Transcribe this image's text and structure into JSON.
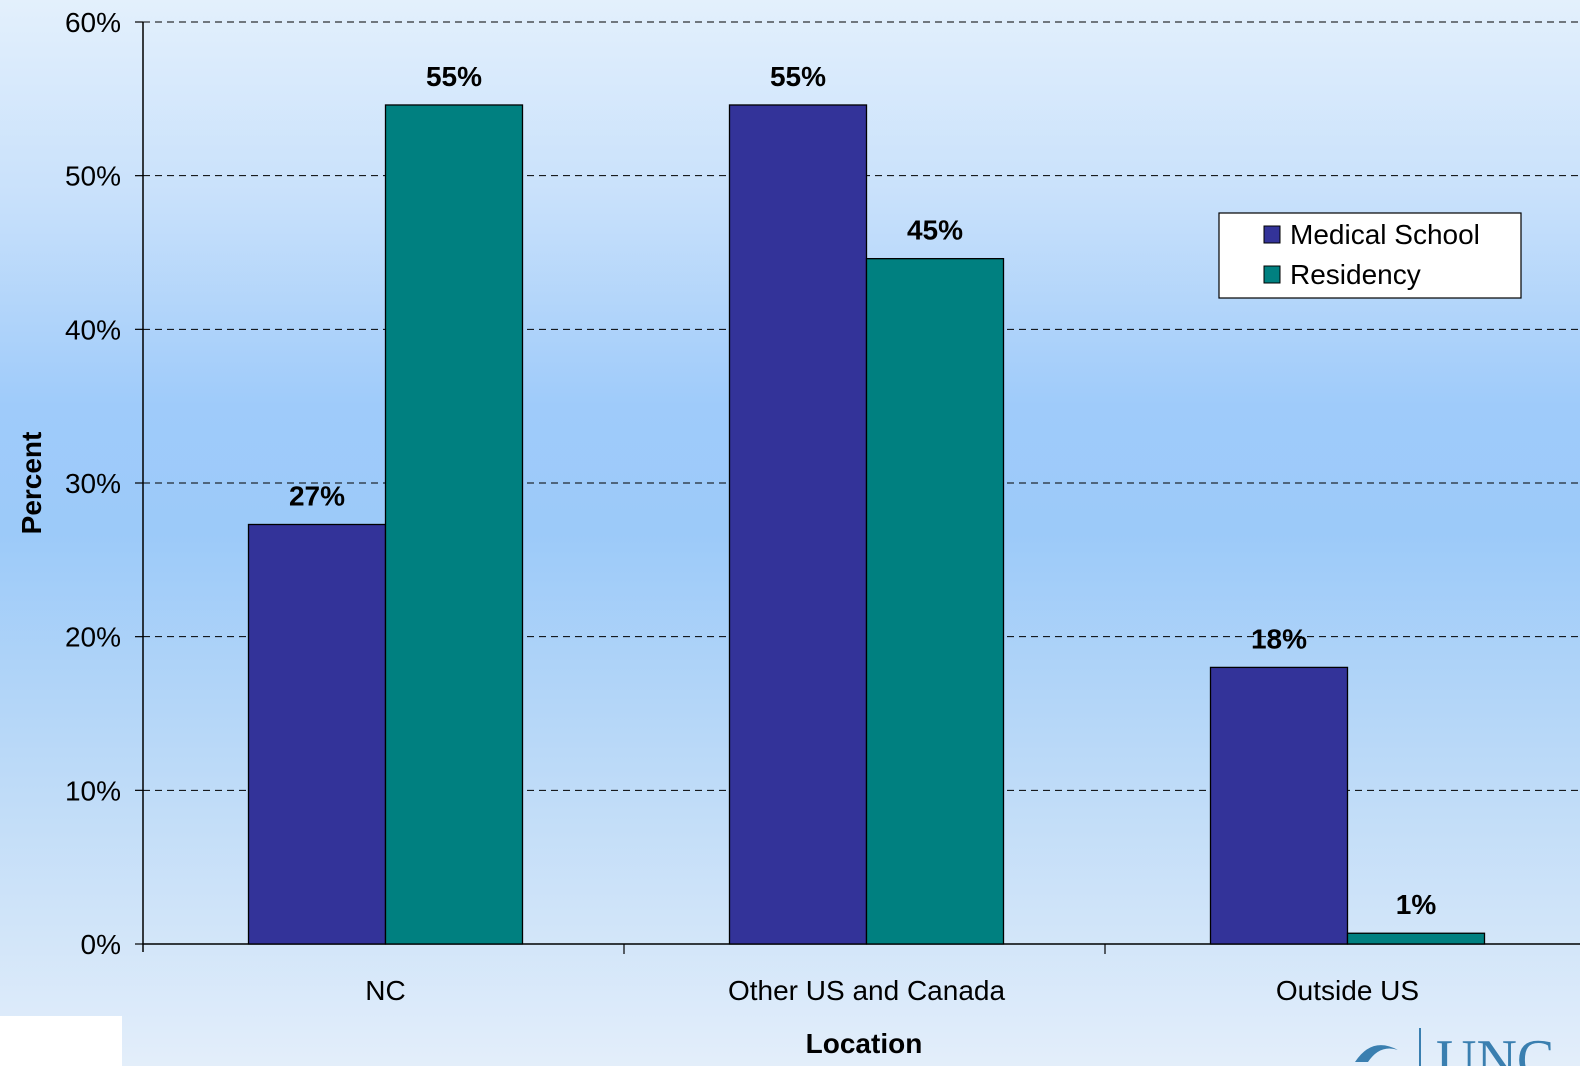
{
  "chart_data": {
    "type": "bar",
    "categories": [
      "NC",
      "Other US and Canada",
      "Outside US"
    ],
    "series": [
      {
        "name": "Medical School",
        "values": [
          27.3,
          54.6,
          18.0
        ],
        "labels": [
          "27%",
          "55%",
          "18%"
        ],
        "color": "#333399"
      },
      {
        "name": "Residency",
        "values": [
          54.6,
          44.6,
          0.7
        ],
        "labels": [
          "55%",
          "45%",
          "1%"
        ],
        "color": "#008080"
      }
    ],
    "xlabel": "Location",
    "ylabel": "Percent",
    "ylim": [
      0,
      60
    ],
    "yticks": [
      "0%",
      "10%",
      "20%",
      "30%",
      "40%",
      "50%",
      "60%"
    ],
    "grid": "dashed horizontal",
    "legend": "top-right"
  },
  "logo": {
    "text": "UNC",
    "icon": "unc-logo-icon"
  }
}
